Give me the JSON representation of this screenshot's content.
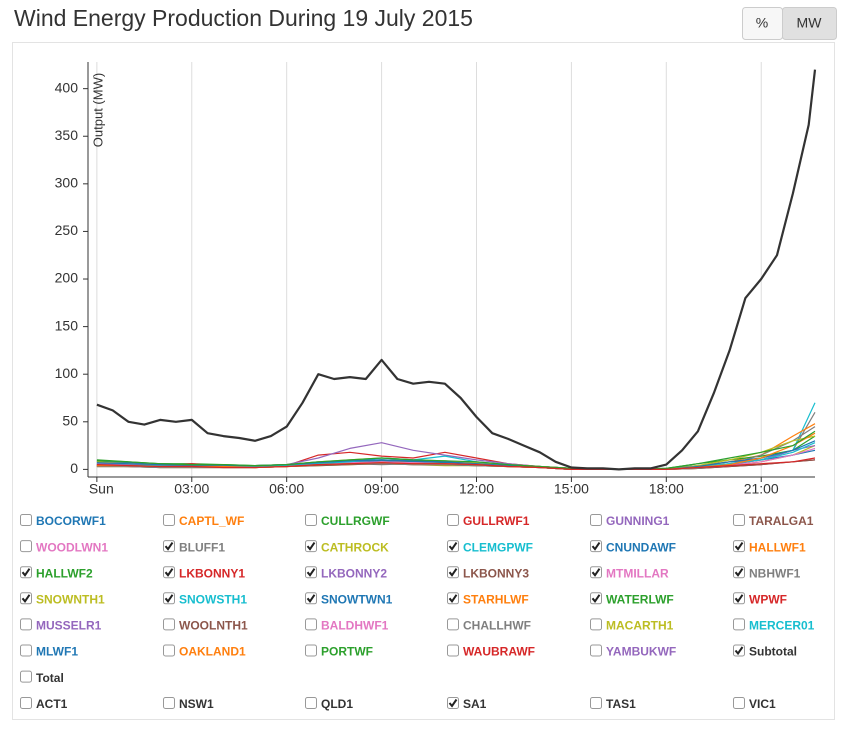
{
  "chart_data": {
    "type": "line",
    "title": "Wind Energy Production During 19 July 2015",
    "buttons": [
      "%",
      "MW"
    ],
    "active_button": 1,
    "y_label": "Output (MW)",
    "x": [
      0,
      1,
      2,
      3,
      4,
      5,
      6,
      7,
      8,
      9,
      10,
      11,
      12,
      13,
      14,
      15,
      16,
      17,
      18,
      19,
      20,
      21,
      22,
      22.7
    ],
    "xlim": [
      -0.28,
      22.7
    ],
    "xticks": [
      {
        "value": 0,
        "label": "Sun"
      },
      {
        "value": 3,
        "label": "03:00"
      },
      {
        "value": 6,
        "label": "06:00"
      },
      {
        "value": 9,
        "label": "09:00"
      },
      {
        "value": 12,
        "label": "12:00"
      },
      {
        "value": 15,
        "label": "15:00"
      },
      {
        "value": 18,
        "label": "18:00"
      },
      {
        "value": 21,
        "label": "21:00"
      }
    ],
    "ylim": [
      -8,
      428
    ],
    "yticks": [
      0,
      50,
      100,
      150,
      200,
      250,
      300,
      350,
      400
    ],
    "grid": "x",
    "series": [
      {
        "name": "BOCORWF1",
        "color": "#1f77b4",
        "checked": false
      },
      {
        "name": "CAPTL_WF",
        "color": "#ff7f0e",
        "checked": false
      },
      {
        "name": "CULLRGWF",
        "color": "#2ca02c",
        "checked": false
      },
      {
        "name": "GULLRWF1",
        "color": "#d62728",
        "checked": false
      },
      {
        "name": "GUNNING1",
        "color": "#9467bd",
        "checked": false
      },
      {
        "name": "TARALGA1",
        "color": "#8c564b",
        "checked": false
      },
      {
        "name": "WOODLWN1",
        "color": "#e377c2",
        "checked": false
      },
      {
        "name": "BLUFF1",
        "color": "#7f7f7f",
        "checked": true,
        "values": [
          5,
          4,
          3,
          3,
          2,
          2,
          3,
          5,
          6,
          5,
          6,
          5,
          4,
          3,
          2,
          0,
          0,
          0,
          0,
          2,
          5,
          10,
          20,
          60
        ]
      },
      {
        "name": "CATHROCK",
        "color": "#bcbd22",
        "checked": true,
        "values": [
          3,
          3,
          2,
          2,
          2,
          2,
          3,
          4,
          5,
          6,
          5,
          4,
          4,
          3,
          2,
          0,
          0,
          0,
          0,
          1,
          4,
          8,
          15,
          25
        ]
      },
      {
        "name": "CLEMGPWF",
        "color": "#17becf",
        "checked": true,
        "values": [
          6,
          5,
          4,
          4,
          3,
          3,
          4,
          6,
          8,
          10,
          8,
          9,
          6,
          5,
          3,
          1,
          0,
          0,
          0,
          3,
          6,
          12,
          20,
          70
        ]
      },
      {
        "name": "CNUNDAWF",
        "color": "#1f77b4",
        "checked": true,
        "values": [
          8,
          7,
          6,
          5,
          4,
          4,
          5,
          8,
          7,
          9,
          8,
          7,
          6,
          4,
          3,
          1,
          0,
          0,
          1,
          4,
          8,
          10,
          15,
          20
        ]
      },
      {
        "name": "HALLWF1",
        "color": "#ff7f0e",
        "checked": true,
        "values": [
          4,
          4,
          3,
          3,
          2,
          2,
          3,
          5,
          6,
          8,
          7,
          6,
          5,
          3,
          2,
          0,
          0,
          0,
          0,
          3,
          8,
          15,
          35,
          48
        ]
      },
      {
        "name": "HALLWF2",
        "color": "#2ca02c",
        "checked": true,
        "values": [
          10,
          8,
          6,
          6,
          5,
          4,
          5,
          7,
          9,
          10,
          9,
          8,
          7,
          5,
          3,
          1,
          0,
          0,
          1,
          6,
          10,
          14,
          20,
          35
        ]
      },
      {
        "name": "LKBONNY1",
        "color": "#d62728",
        "checked": true,
        "values": [
          4,
          3,
          3,
          6,
          3,
          2,
          4,
          15,
          18,
          14,
          12,
          18,
          12,
          6,
          3,
          1,
          0,
          0,
          0,
          1,
          3,
          5,
          8,
          10
        ]
      },
      {
        "name": "LKBONNY2",
        "color": "#9467bd",
        "checked": true,
        "values": [
          6,
          5,
          4,
          4,
          3,
          3,
          5,
          12,
          22,
          28,
          20,
          15,
          10,
          6,
          3,
          1,
          0,
          0,
          0,
          2,
          5,
          10,
          20,
          25
        ]
      },
      {
        "name": "LKBONNY3",
        "color": "#8c564b",
        "checked": true,
        "values": [
          3,
          3,
          2,
          2,
          2,
          2,
          3,
          4,
          5,
          6,
          5,
          5,
          4,
          3,
          2,
          0,
          0,
          0,
          0,
          1,
          3,
          5,
          8,
          10
        ]
      },
      {
        "name": "MTMILLAR",
        "color": "#e377c2",
        "checked": true,
        "values": [
          5,
          4,
          4,
          3,
          3,
          3,
          4,
          6,
          7,
          8,
          7,
          6,
          5,
          4,
          2,
          0,
          0,
          0,
          0,
          2,
          4,
          8,
          15,
          22
        ]
      },
      {
        "name": "NBHWF1",
        "color": "#7f7f7f",
        "checked": true,
        "values": [
          3,
          3,
          2,
          2,
          2,
          2,
          3,
          5,
          6,
          6,
          5,
          5,
          4,
          3,
          2,
          0,
          0,
          0,
          0,
          1,
          5,
          15,
          30,
          45
        ]
      },
      {
        "name": "SNOWNTH1",
        "color": "#bcbd22",
        "checked": true,
        "values": [
          8,
          6,
          5,
          5,
          4,
          4,
          5,
          8,
          10,
          12,
          10,
          9,
          7,
          5,
          3,
          1,
          0,
          0,
          0,
          4,
          10,
          18,
          30,
          35
        ]
      },
      {
        "name": "SNOWSTH1",
        "color": "#17becf",
        "checked": true,
        "values": [
          5,
          4,
          4,
          3,
          3,
          3,
          4,
          6,
          8,
          12,
          10,
          14,
          8,
          5,
          2,
          0,
          0,
          0,
          0,
          2,
          6,
          10,
          18,
          28
        ]
      },
      {
        "name": "SNOWTWN1",
        "color": "#1f77b4",
        "checked": true,
        "values": [
          7,
          6,
          5,
          4,
          4,
          4,
          5,
          7,
          9,
          10,
          9,
          8,
          6,
          4,
          2,
          0,
          0,
          0,
          0,
          3,
          8,
          12,
          20,
          30
        ]
      },
      {
        "name": "STARHLWF",
        "color": "#ff7f0e",
        "checked": true,
        "values": [
          4,
          4,
          3,
          3,
          3,
          2,
          3,
          5,
          6,
          7,
          6,
          6,
          5,
          3,
          2,
          0,
          0,
          0,
          0,
          2,
          5,
          12,
          25,
          38
        ]
      },
      {
        "name": "WATERLWF",
        "color": "#2ca02c",
        "checked": true,
        "values": [
          9,
          8,
          6,
          5,
          5,
          4,
          5,
          8,
          10,
          12,
          10,
          9,
          8,
          5,
          3,
          1,
          0,
          0,
          1,
          6,
          12,
          18,
          25,
          40
        ]
      },
      {
        "name": "WPWF",
        "color": "#d62728",
        "checked": true,
        "values": [
          5,
          4,
          3,
          3,
          2,
          2,
          3,
          5,
          6,
          7,
          6,
          6,
          5,
          3,
          2,
          0,
          0,
          0,
          0,
          2,
          4,
          6,
          8,
          12
        ]
      },
      {
        "name": "MUSSELR1",
        "color": "#9467bd",
        "checked": false
      },
      {
        "name": "WOOLNTH1",
        "color": "#8c564b",
        "checked": false
      },
      {
        "name": "BALDHWF1",
        "color": "#e377c2",
        "checked": false
      },
      {
        "name": "CHALLHWF",
        "color": "#7f7f7f",
        "checked": false
      },
      {
        "name": "MACARTH1",
        "color": "#bcbd22",
        "checked": false
      },
      {
        "name": "MERCER01",
        "color": "#17becf",
        "checked": false
      },
      {
        "name": "MLWF1",
        "color": "#1f77b4",
        "checked": false
      },
      {
        "name": "OAKLAND1",
        "color": "#ff7f0e",
        "checked": false
      },
      {
        "name": "PORTWF",
        "color": "#2ca02c",
        "checked": false
      },
      {
        "name": "WAUBRAWF",
        "color": "#d62728",
        "checked": false
      },
      {
        "name": "YAMBUKWF",
        "color": "#9467bd",
        "checked": false
      },
      {
        "name": "Subtotal",
        "color": "#333333",
        "checked": true,
        "x": [
          0,
          0.5,
          1,
          1.5,
          2,
          2.5,
          3,
          3.5,
          4,
          4.5,
          5,
          5.5,
          6,
          6.5,
          7,
          7.5,
          8,
          8.5,
          9,
          9.5,
          10,
          10.5,
          11,
          11.5,
          12,
          12.5,
          13,
          13.5,
          14,
          14.5,
          15,
          15.5,
          16,
          16.5,
          17,
          17.5,
          18,
          18.5,
          19,
          19.5,
          20,
          20.5,
          21,
          21.5,
          22,
          22.5,
          22.7
        ],
        "values": [
          68,
          62,
          50,
          47,
          52,
          50,
          52,
          38,
          35,
          33,
          30,
          35,
          45,
          70,
          100,
          95,
          97,
          95,
          115,
          95,
          90,
          92,
          90,
          75,
          55,
          38,
          32,
          25,
          18,
          8,
          2,
          1,
          1,
          0,
          1,
          1,
          5,
          20,
          40,
          80,
          125,
          180,
          200,
          225,
          290,
          362,
          420
        ]
      },
      {
        "name": "Total",
        "color": "#333333",
        "checked": false
      }
    ],
    "regions": [
      {
        "name": "ACT1",
        "checked": false
      },
      {
        "name": "NSW1",
        "checked": false
      },
      {
        "name": "QLD1",
        "checked": false
      },
      {
        "name": "SA1",
        "checked": true
      },
      {
        "name": "TAS1",
        "checked": false
      },
      {
        "name": "VIC1",
        "checked": false
      }
    ]
  }
}
